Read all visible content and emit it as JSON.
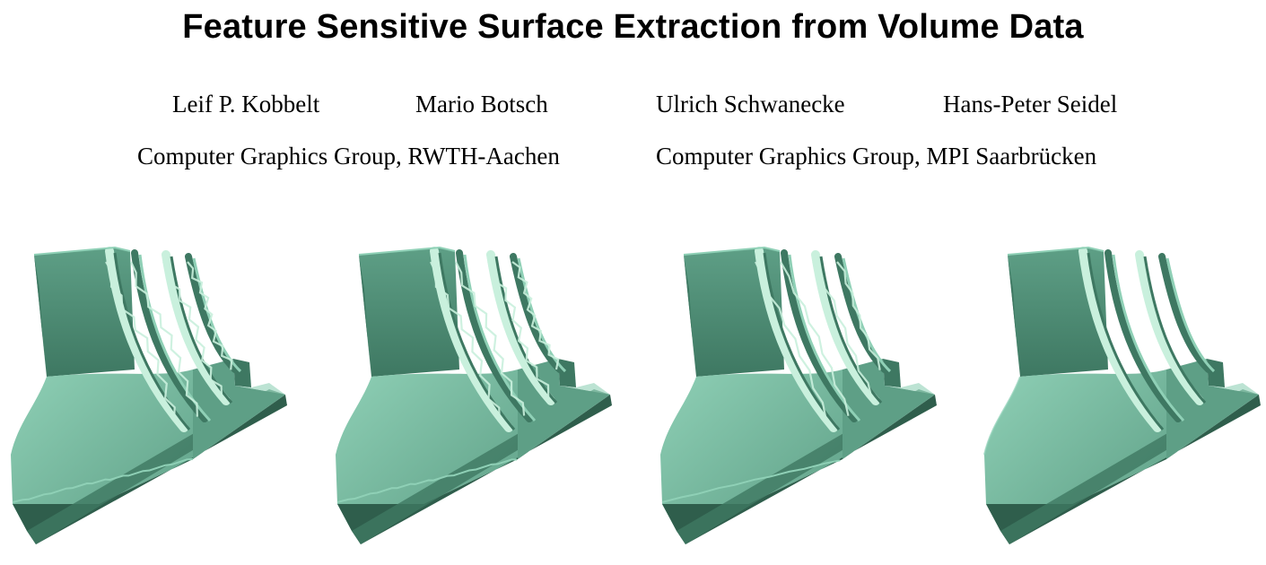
{
  "paper": {
    "title": "Feature Sensitive Surface Extraction from Volume Data",
    "authors": [
      "Leif P. Kobbelt",
      "Mario Botsch",
      "Ulrich Schwanecke",
      "Hans-Peter Seidel"
    ],
    "affiliations": [
      "Computer Graphics Group, RWTH-Aachen",
      "Computer Graphics Group, MPI Saarbrücken"
    ]
  },
  "figure": {
    "panels": [
      {
        "variant": "jagged"
      },
      {
        "variant": "jagged"
      },
      {
        "variant": "semi"
      },
      {
        "variant": "smooth"
      }
    ],
    "colors": {
      "mesh_light": "#8fd0b6",
      "mesh_mid": "#5e9f86",
      "mesh_dark": "#3e7862",
      "mesh_shadow": "#2f5e4c",
      "highlight": "#c9f0dd"
    }
  }
}
